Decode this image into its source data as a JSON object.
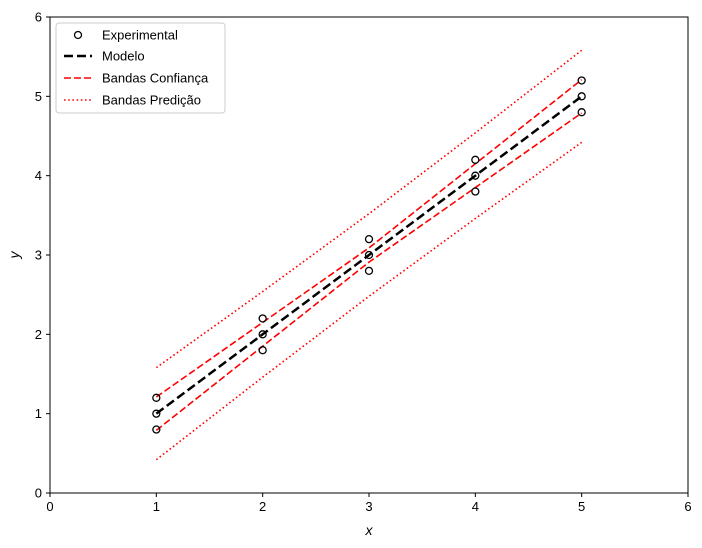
{
  "chart_data": {
    "type": "scatter",
    "title": "",
    "xlabel": "x",
    "ylabel": "y",
    "xlim": [
      0,
      6
    ],
    "ylim": [
      0,
      6
    ],
    "xticks": [
      0,
      1,
      2,
      3,
      4,
      5,
      6
    ],
    "yticks": [
      0,
      1,
      2,
      3,
      4,
      5,
      6
    ],
    "grid": false,
    "legend_position": "top-left",
    "series": [
      {
        "name": "Experimental",
        "kind": "scatter",
        "marker": "open-circle",
        "color": "#000000",
        "x": [
          1,
          1,
          1,
          2,
          2,
          2,
          3,
          3,
          3,
          4,
          4,
          4,
          5,
          5,
          5
        ],
        "y": [
          0.8,
          1.0,
          1.2,
          1.8,
          2.0,
          2.2,
          2.8,
          3.0,
          3.2,
          3.8,
          4.0,
          4.2,
          4.8,
          5.0,
          5.2
        ]
      },
      {
        "name": "Modelo",
        "kind": "line",
        "style": "dashed",
        "color": "#000000",
        "x": [
          1,
          5
        ],
        "y": [
          1.0,
          5.0
        ]
      },
      {
        "name": "Bandas Confiança",
        "kind": "band",
        "style": "dashed",
        "color": "#ff0000",
        "x": [
          1,
          2,
          3,
          4,
          5
        ],
        "upper": [
          1.21,
          2.15,
          3.09,
          4.15,
          5.21
        ],
        "lower": [
          0.79,
          1.85,
          2.91,
          3.85,
          4.79
        ]
      },
      {
        "name": "Bandas Predição",
        "kind": "band",
        "style": "dotted",
        "color": "#ff0000",
        "x": [
          1,
          2,
          3,
          4,
          5
        ],
        "upper": [
          1.58,
          2.54,
          3.52,
          4.54,
          5.58
        ],
        "lower": [
          0.42,
          1.46,
          2.48,
          3.46,
          4.42
        ]
      }
    ]
  }
}
